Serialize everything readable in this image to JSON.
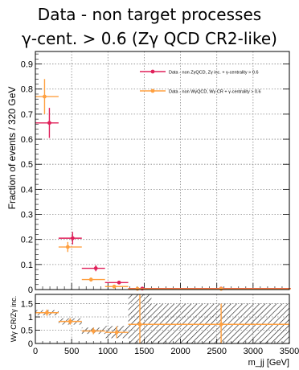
{
  "title_line1": "Data - non target processes",
  "title_line2": "γ-cent. > 0.6 (Zγ QCD CR2-like)",
  "chart_data": [
    {
      "type": "scatter",
      "xlabel": "m_jj [GeV]",
      "ylabel": "Fraction of events / 320 GeV",
      "xlim": [
        0,
        3500
      ],
      "ylim": [
        0,
        0.95
      ],
      "grid": true,
      "legend_position": "top-right",
      "x_ticks": [
        "0",
        "500",
        "1000",
        "1500",
        "2000",
        "2500",
        "3000",
        "3500"
      ],
      "y_ticks": [
        "0",
        "0.1",
        "0.2",
        "0.3",
        "0.4",
        "0.5",
        "0.6",
        "0.7",
        "0.8",
        "0.9"
      ],
      "series": [
        {
          "name": "Data - non ZγQCD, Zγ inc. + γ-centrality > 0.6",
          "color": "#e0205a",
          "points": [
            {
              "x": 160,
              "y": 0.665,
              "xerr": 160,
              "yerr_lo": 0.06,
              "yerr_hi": 0.06
            },
            {
              "x": 480,
              "y": 0.205,
              "xerr": 160,
              "yerr_lo": 0.025,
              "yerr_hi": 0.025
            },
            {
              "x": 800,
              "y": 0.085,
              "xerr": 160,
              "yerr_lo": 0.012,
              "yerr_hi": 0.012
            },
            {
              "x": 1120,
              "y": 0.028,
              "xerr": 160,
              "yerr_lo": 0.006,
              "yerr_hi": 0.006
            },
            {
              "x": 1440,
              "y": 0.004,
              "xerr": 160,
              "yerr_lo": 0.003,
              "yerr_hi": 0.003
            },
            {
              "x": 2560,
              "y": 0.004,
              "xerr": 960,
              "yerr_lo": 0.002,
              "yerr_hi": 0.002
            }
          ]
        },
        {
          "name": "Data - non WγQCD, Wγ CR + γ-centrality > 0.6",
          "color": "#ffa040",
          "points": [
            {
              "x": 160,
              "y": 0.77,
              "xerr": 160,
              "yerr_lo": 0.07,
              "yerr_hi": 0.07
            },
            {
              "x": 480,
              "y": 0.17,
              "xerr": 160,
              "yerr_lo": 0.02,
              "yerr_hi": 0.02
            },
            {
              "x": 800,
              "y": 0.04,
              "xerr": 160,
              "yerr_lo": 0.008,
              "yerr_hi": 0.008
            },
            {
              "x": 1120,
              "y": 0.012,
              "xerr": 160,
              "yerr_lo": 0.004,
              "yerr_hi": 0.004
            },
            {
              "x": 1440,
              "y": 0.003,
              "xerr": 160,
              "yerr_lo": 0.002,
              "yerr_hi": 0.002
            },
            {
              "x": 2560,
              "y": 0.003,
              "xerr": 960,
              "yerr_lo": 0.002,
              "yerr_hi": 0.002
            }
          ]
        }
      ]
    },
    {
      "type": "scatter",
      "xlabel": "m_jj [GeV]",
      "ylabel": "Wγ CR/Zγ inc.",
      "xlim": [
        0,
        3500
      ],
      "ylim": [
        0,
        1.85
      ],
      "grid": true,
      "x_ticks": [
        "0",
        "500",
        "1000",
        "1500",
        "2000",
        "2500",
        "3000",
        "3500"
      ],
      "y_ticks": [
        "0",
        "0.5",
        "1",
        "1.5"
      ],
      "points": [
        {
          "x": 160,
          "y": 1.16,
          "xerr": 160,
          "yerr_lo": 0.12,
          "yerr_hi": 0.12
        },
        {
          "x": 480,
          "y": 0.83,
          "xerr": 160,
          "yerr_lo": 0.12,
          "yerr_hi": 0.12
        },
        {
          "x": 800,
          "y": 0.47,
          "xerr": 160,
          "yerr_lo": 0.12,
          "yerr_hi": 0.12
        },
        {
          "x": 1120,
          "y": 0.42,
          "xerr": 160,
          "yerr_lo": 0.22,
          "yerr_hi": 0.22
        },
        {
          "x": 1440,
          "y": 0.72,
          "xerr": 160,
          "yerr_lo": 0.72,
          "yerr_hi": 1.13
        },
        {
          "x": 2560,
          "y": 0.72,
          "xerr": 960,
          "yerr_lo": 0.72,
          "yerr_hi": 0.78
        }
      ],
      "uncertainty_band": [
        {
          "x0": 0,
          "x1": 320,
          "lo": 1.06,
          "hi": 1.26
        },
        {
          "x0": 320,
          "x1": 640,
          "lo": 0.71,
          "hi": 0.95
        },
        {
          "x0": 640,
          "x1": 960,
          "lo": 0.36,
          "hi": 0.6
        },
        {
          "x0": 960,
          "x1": 1280,
          "lo": 0.2,
          "hi": 0.66
        },
        {
          "x0": 1280,
          "x1": 1600,
          "lo": 0.0,
          "hi": 1.85
        },
        {
          "x0": 1600,
          "x1": 3520,
          "lo": 0.0,
          "hi": 1.5
        }
      ]
    }
  ]
}
